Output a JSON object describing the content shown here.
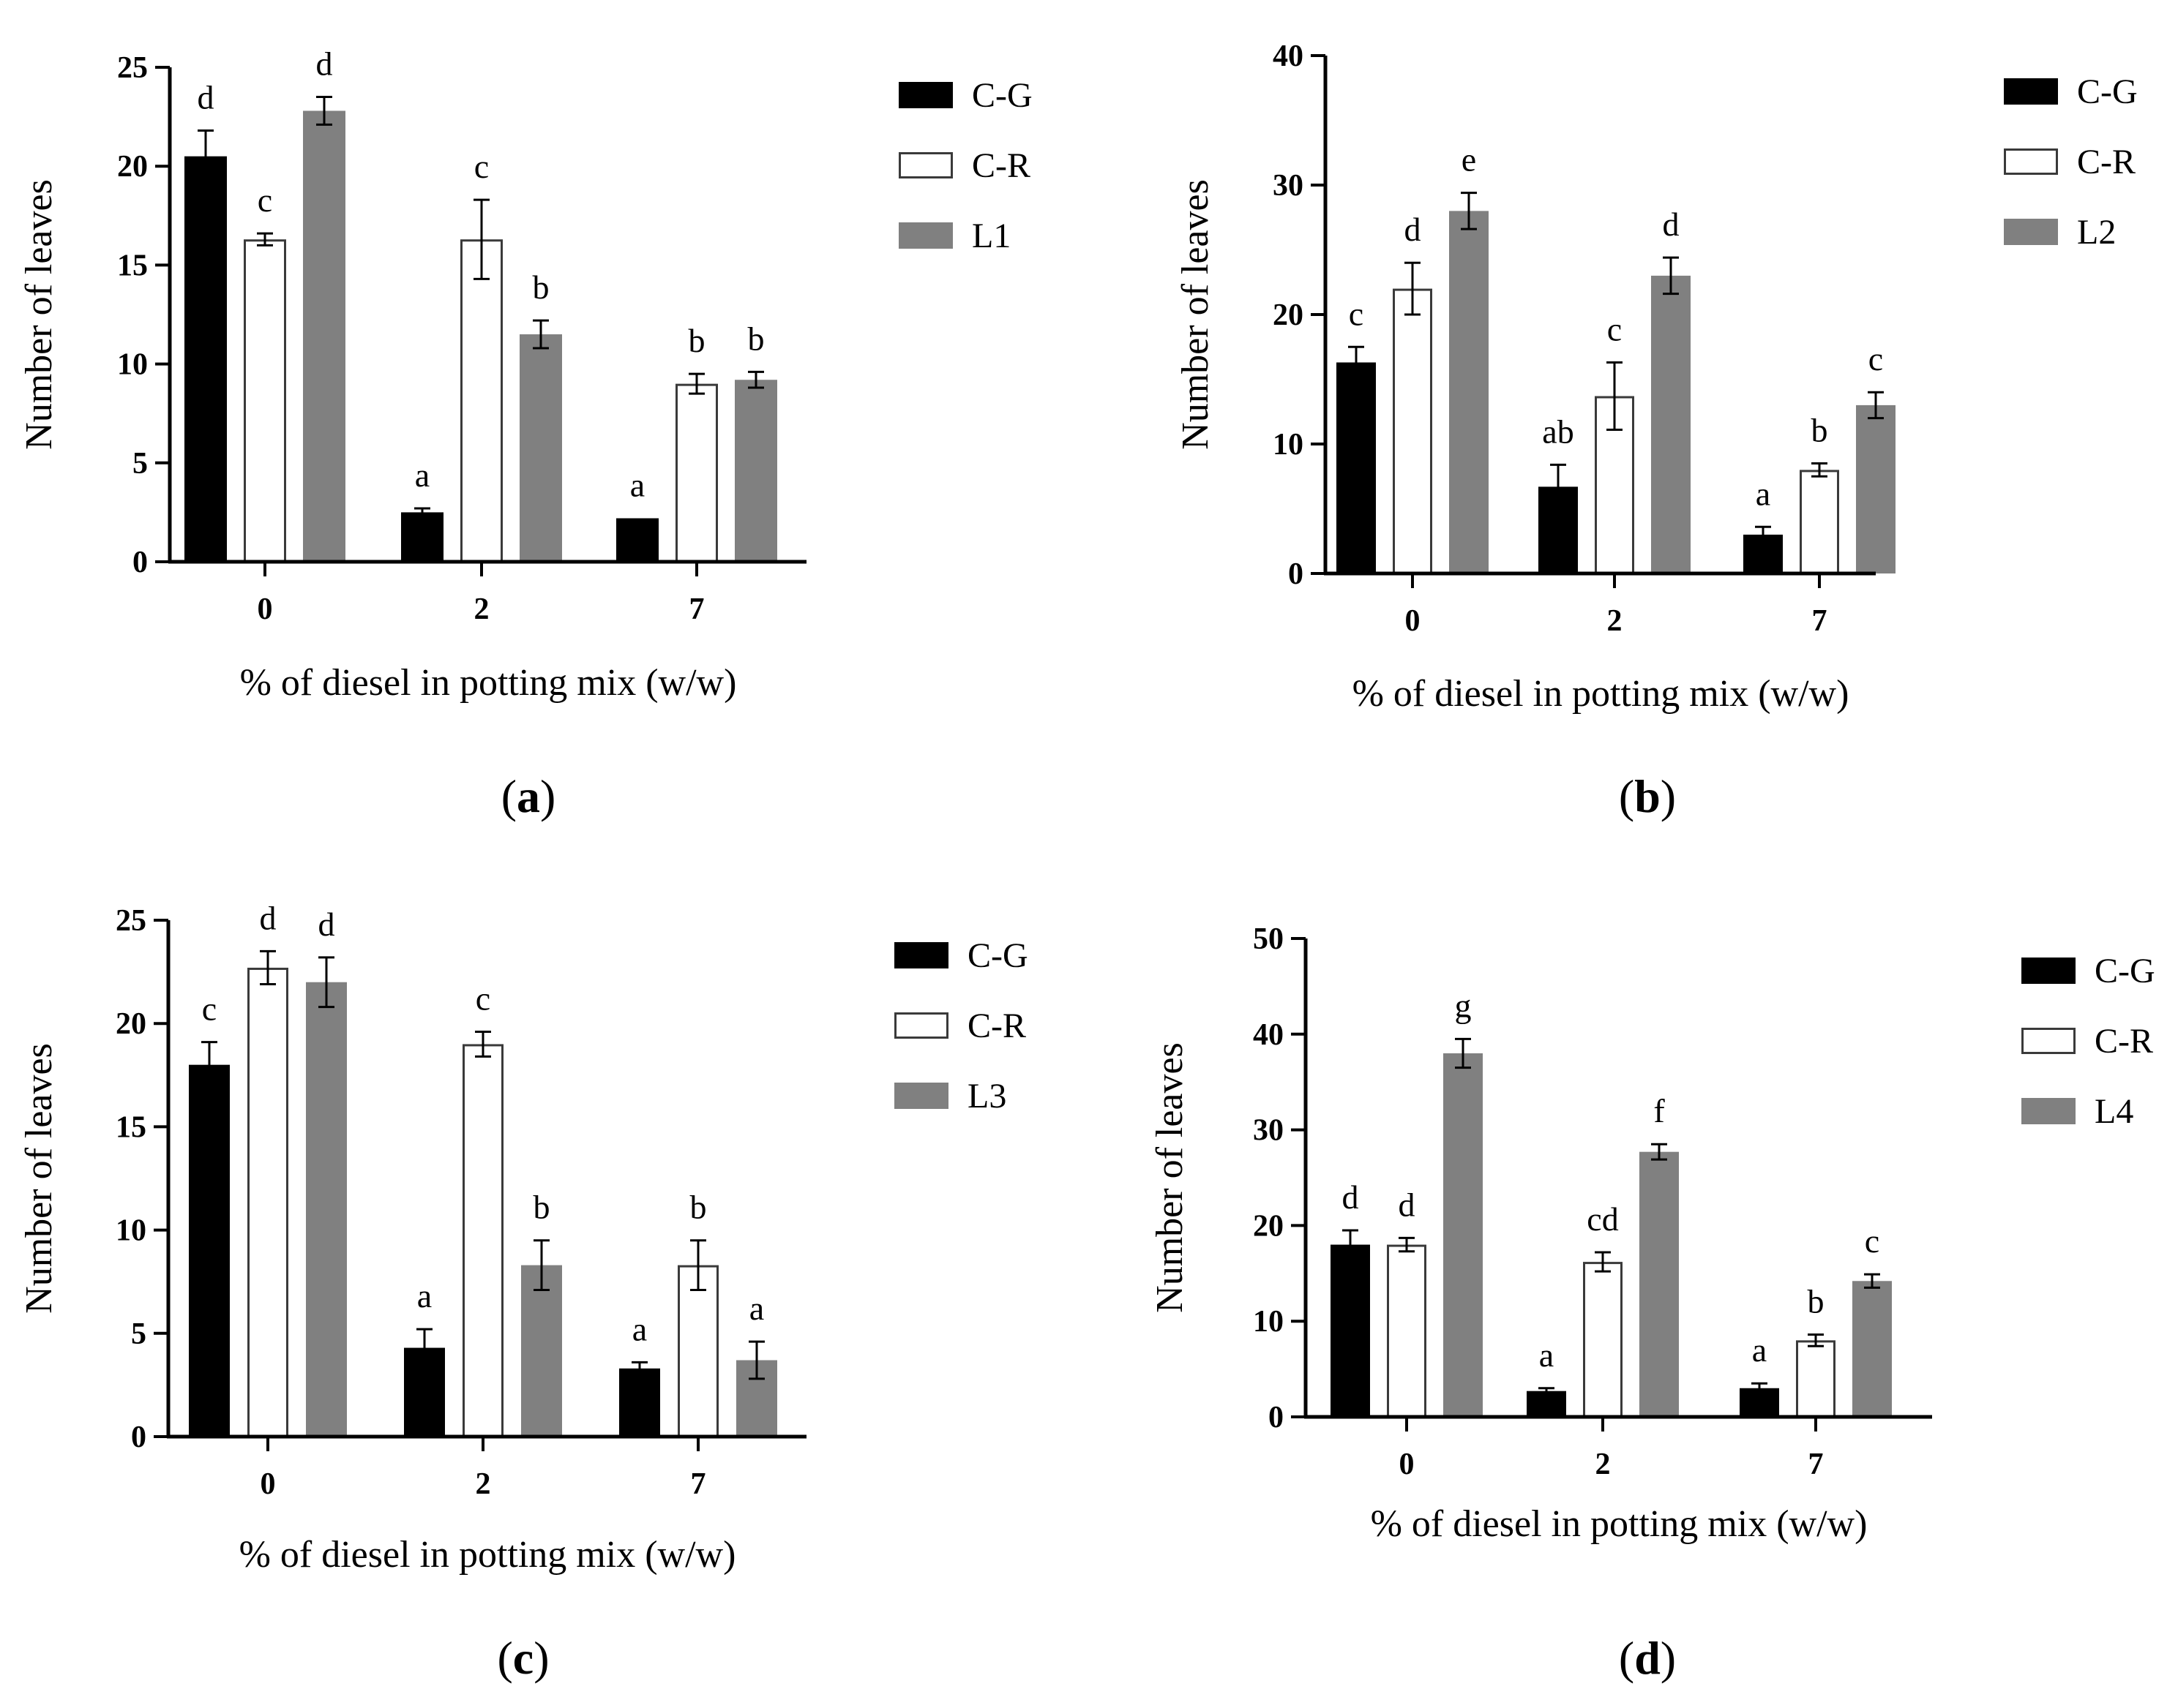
{
  "chart_data": [
    {
      "type": "bar",
      "panel": "a",
      "categories": [
        "0",
        "2",
        "7"
      ],
      "series": [
        {
          "name": "C-G",
          "values": [
            20.5,
            2.5,
            2.2
          ],
          "errors": [
            1.3,
            0.2,
            0.0
          ],
          "letters": [
            "d",
            "a",
            "a"
          ]
        },
        {
          "name": "C-R",
          "values": [
            16.3,
            16.3,
            9.0
          ],
          "errors": [
            0.3,
            2.0,
            0.5
          ],
          "letters": [
            "c",
            "c",
            "b"
          ]
        },
        {
          "name": "L1",
          "values": [
            22.8,
            11.5,
            9.2
          ],
          "errors": [
            0.7,
            0.7,
            0.4
          ],
          "letters": [
            "d",
            "b",
            "b"
          ]
        }
      ],
      "yticks": [
        "0",
        "5",
        "10",
        "15",
        "20",
        "25"
      ],
      "ylim": [
        0,
        25
      ],
      "xlabel": "% of diesel in potting mix (w/w)",
      "ylabel": "Number of leaves",
      "legend": [
        "C-G",
        "C-R",
        "L1"
      ]
    },
    {
      "type": "bar",
      "panel": "b",
      "categories": [
        "0",
        "2",
        "7"
      ],
      "series": [
        {
          "name": "C-G",
          "values": [
            16.3,
            6.7,
            3.0
          ],
          "errors": [
            1.2,
            1.7,
            0.6
          ],
          "letters": [
            "c",
            "ab",
            "a"
          ]
        },
        {
          "name": "C-R",
          "values": [
            22.0,
            13.7,
            8.0
          ],
          "errors": [
            2.0,
            2.6,
            0.5
          ],
          "letters": [
            "d",
            "c",
            "b"
          ]
        },
        {
          "name": "L2",
          "values": [
            28.0,
            23.0,
            13.0
          ],
          "errors": [
            1.4,
            1.4,
            1.0
          ],
          "letters": [
            "e",
            "d",
            "c"
          ]
        }
      ],
      "yticks": [
        "0",
        "10",
        "20",
        "30",
        "40"
      ],
      "ylim": [
        0,
        40
      ],
      "xlabel": "% of diesel in potting mix (w/w)",
      "ylabel": "Number of leaves",
      "legend": [
        "C-G",
        "C-R",
        "L2"
      ]
    },
    {
      "type": "bar",
      "panel": "c",
      "categories": [
        "0",
        "2",
        "7"
      ],
      "series": [
        {
          "name": "C-G",
          "values": [
            18.0,
            4.3,
            3.3
          ],
          "errors": [
            1.1,
            0.9,
            0.3
          ],
          "letters": [
            "c",
            "a",
            "a"
          ]
        },
        {
          "name": "C-R",
          "values": [
            22.7,
            19.0,
            8.3
          ],
          "errors": [
            0.8,
            0.6,
            1.2
          ],
          "letters": [
            "d",
            "c",
            "b"
          ]
        },
        {
          "name": "L3",
          "values": [
            22.0,
            8.3,
            3.7
          ],
          "errors": [
            1.2,
            1.2,
            0.9
          ],
          "letters": [
            "d",
            "b",
            "a"
          ]
        }
      ],
      "yticks": [
        "0",
        "5",
        "10",
        "15",
        "20",
        "25"
      ],
      "ylim": [
        0,
        25
      ],
      "xlabel": "% of diesel in potting mix (w/w)",
      "ylabel": "Number of leaves",
      "legend": [
        "C-G",
        "C-R",
        "L3"
      ]
    },
    {
      "type": "bar",
      "panel": "d",
      "categories": [
        "0",
        "2",
        "7"
      ],
      "series": [
        {
          "name": "C-G",
          "values": [
            18.0,
            2.7,
            3.0
          ],
          "errors": [
            1.5,
            0.3,
            0.5
          ],
          "letters": [
            "d",
            "a",
            "a"
          ]
        },
        {
          "name": "C-R",
          "values": [
            18.0,
            16.2,
            8.0
          ],
          "errors": [
            0.7,
            1.0,
            0.6
          ],
          "letters": [
            "d",
            "cd",
            "b"
          ]
        },
        {
          "name": "L4",
          "values": [
            38.0,
            27.7,
            14.2
          ],
          "errors": [
            1.5,
            0.8,
            0.7
          ],
          "letters": [
            "g",
            "f",
            "c"
          ]
        }
      ],
      "yticks": [
        "0",
        "10",
        "20",
        "30",
        "40",
        "50"
      ],
      "ylim": [
        0,
        50
      ],
      "xlabel": "% of diesel in potting mix (w/w)",
      "ylabel": "Number of leaves",
      "legend": [
        "C-G",
        "C-R",
        "L4"
      ]
    }
  ],
  "colors": {
    "C-G": "#000000",
    "C-R": "#ffffff",
    "L": "#808080",
    "axis": "#000000"
  }
}
